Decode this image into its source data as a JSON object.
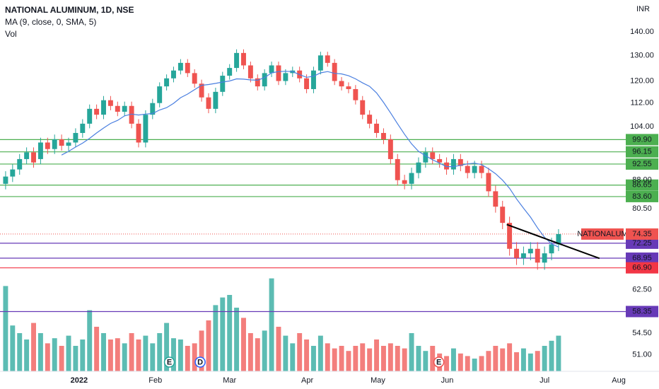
{
  "chart_data": {
    "type": "candlestick",
    "title": "NATIONAL ALUMINUM, 1D, NSE",
    "indicator_label": "MA (9, close, 0, SMA, 5)",
    "volume_label": "Vol",
    "currency": "INR",
    "symbol": "NATIONALUM",
    "last_price": {
      "value": 74.35,
      "label": "74.35"
    },
    "log_scale": true,
    "up_color": "#26a69a",
    "down_color": "#ef5350",
    "ma_color": "#4a7fe0",
    "xlim": [
      -0.8,
      88.1
    ],
    "ylim": [
      48.4,
      154.6
    ],
    "volume_ylim": [
      0,
      100
    ],
    "xticks": [
      {
        "value": 10.5,
        "label": "2022"
      },
      {
        "value": 21.4,
        "label": "Feb"
      },
      {
        "value": 32,
        "label": "Mar"
      },
      {
        "value": 43.1,
        "label": "Apr"
      },
      {
        "value": 53.2,
        "label": "May"
      },
      {
        "value": 63.1,
        "label": "Jun"
      },
      {
        "value": 77,
        "label": "Jul"
      },
      {
        "value": 87.6,
        "label": "Aug"
      }
    ],
    "yticks": [
      {
        "value": 140,
        "label": "140.00"
      },
      {
        "value": 130,
        "label": "130.00"
      },
      {
        "value": 120,
        "label": "120.00"
      },
      {
        "value": 112,
        "label": "112.00"
      },
      {
        "value": 104,
        "label": "104.00"
      },
      {
        "value": 88,
        "label": "88.00"
      },
      {
        "value": 80.5,
        "label": "80.50"
      },
      {
        "value": 62.5,
        "label": "62.50"
      },
      {
        "value": 54.5,
        "label": "54.50"
      },
      {
        "value": 51,
        "label": "51.00"
      }
    ],
    "open": [
      87,
      89,
      91,
      94,
      96,
      94,
      99,
      97,
      100,
      98,
      99,
      102,
      105,
      110,
      108,
      113,
      111,
      109,
      111,
      105,
      99,
      108,
      112,
      118,
      121,
      124,
      127,
      123,
      119,
      114,
      110,
      116,
      122,
      125,
      131,
      126,
      121,
      118,
      123,
      126,
      120,
      123,
      124,
      121,
      117,
      124,
      130,
      127,
      120,
      118,
      117,
      113,
      108,
      105,
      102,
      100,
      94,
      88,
      87,
      90,
      93,
      96,
      94,
      93,
      91,
      94,
      92,
      90,
      92,
      90,
      85,
      81,
      77,
      71,
      69,
      70,
      71,
      68,
      70,
      72
    ],
    "high": [
      90.5,
      92.5,
      95.5,
      97.5,
      97.5,
      100.5,
      100.5,
      101.5,
      101.5,
      100.5,
      103.5,
      106.5,
      111.5,
      111.5,
      114.5,
      114.5,
      112.5,
      112.5,
      112.5,
      106.5,
      109.5,
      113.5,
      119.5,
      122.5,
      125.5,
      128.5,
      128.5,
      124.5,
      120.5,
      115.5,
      117.5,
      123.5,
      126.5,
      132.5,
      132.5,
      127.5,
      122.5,
      124.5,
      127.5,
      127.5,
      124.5,
      125.5,
      125.5,
      122.5,
      125.5,
      131.5,
      131.5,
      128.5,
      121.5,
      119.5,
      118.5,
      114.5,
      109.5,
      106.5,
      103.5,
      101.5,
      95.5,
      89.5,
      91.5,
      94.5,
      97.5,
      97.5,
      95.5,
      94.5,
      95.5,
      95.5,
      93.5,
      93.5,
      93.5,
      91.5,
      86.5,
      82.5,
      78.5,
      72.5,
      71.5,
      72.5,
      72.5,
      71.5,
      73.5,
      75.5
    ],
    "low": [
      85.5,
      87.5,
      89.5,
      92.5,
      91.5,
      92.5,
      95.5,
      95.5,
      96.5,
      96.5,
      97.5,
      100.5,
      103.5,
      106.5,
      106.5,
      109.5,
      107.5,
      107.5,
      103.5,
      97.5,
      97.5,
      106.5,
      110.5,
      116.5,
      119.5,
      122.5,
      121.5,
      117.5,
      112.5,
      108.5,
      108.5,
      114.5,
      120.5,
      123.5,
      124.5,
      119.5,
      116.5,
      116.5,
      121.5,
      118.5,
      118.5,
      121.5,
      119.5,
      115.5,
      115.5,
      122.5,
      125.5,
      118.5,
      116.5,
      115.5,
      111.5,
      106.5,
      103.5,
      100.5,
      98.5,
      92.5,
      86.5,
      85.5,
      85.5,
      88.5,
      91.5,
      92.5,
      91.5,
      89.5,
      89.5,
      90.5,
      88.5,
      88.5,
      88.5,
      83.5,
      79.5,
      75.5,
      69.5,
      67.5,
      67.5,
      68.5,
      66.5,
      66.5,
      68.5,
      70.5
    ],
    "close": [
      89,
      91,
      94,
      96,
      93,
      99,
      97,
      100,
      98,
      99,
      102,
      105,
      110,
      108,
      113,
      111,
      109,
      111,
      105,
      99,
      108,
      112,
      118,
      121,
      124,
      127,
      123,
      119,
      114,
      110,
      116,
      122,
      125,
      131,
      126,
      121,
      118,
      123,
      126,
      120,
      123,
      124,
      121,
      117,
      124,
      130,
      127,
      120,
      118,
      117,
      113,
      108,
      105,
      102,
      100,
      94,
      88,
      87,
      90,
      93,
      96,
      94,
      93,
      91,
      94,
      92,
      90,
      92,
      90,
      85,
      81,
      77,
      71,
      69,
      70,
      71,
      68,
      70,
      72,
      74.35
    ],
    "ma": [
      null,
      null,
      null,
      null,
      null,
      null,
      null,
      null,
      95.2,
      96.3,
      97.6,
      98.8,
      100.3,
      102,
      103.6,
      105.1,
      106.1,
      107.6,
      108.2,
      107.9,
      108.2,
      108.4,
      109.6,
      110.4,
      111.9,
      113.9,
      115.2,
      116.8,
      118.4,
      118.7,
      119.1,
      119.6,
      120,
      120.8,
      120.7,
      120.4,
      120.3,
      121.3,
      123.1,
      123.6,
      123.7,
      123.6,
      122.4,
      121.4,
      121.8,
      123.1,
      123.6,
      122.9,
      122.7,
      122,
      120.8,
      119.3,
      118,
      115.6,
      112.2,
      108.6,
      105,
      101.6,
      98.6,
      96.3,
      95,
      93.8,
      92.8,
      91.8,
      91.8,
      92.2,
      92.6,
      92.8,
      92.4,
      91.2,
      89.8,
      88,
      85.8,
      83,
      80.6,
      78.4,
      75.8,
      73.6,
      72.1,
      71.4
    ],
    "volume": [
      67,
      36,
      30,
      25,
      38,
      30,
      22,
      26,
      20,
      28,
      20,
      25,
      48,
      35,
      30,
      25,
      26,
      22,
      30,
      25,
      28,
      22,
      30,
      38,
      26,
      25,
      20,
      22,
      32,
      40,
      52,
      58,
      60,
      50,
      42,
      30,
      26,
      32,
      73,
      35,
      28,
      22,
      30,
      25,
      20,
      28,
      22,
      18,
      20,
      16,
      20,
      22,
      18,
      25,
      20,
      22,
      20,
      18,
      30,
      20,
      16,
      20,
      14,
      12,
      18,
      14,
      12,
      10,
      12,
      16,
      20,
      18,
      22,
      15,
      18,
      14,
      16,
      20,
      24,
      28
    ],
    "levels": [
      {
        "value": 99.9,
        "label": "99.90",
        "color": "#4caf50"
      },
      {
        "value": 96.15,
        "label": "96.15",
        "color": "#4caf50"
      },
      {
        "value": 92.55,
        "label": "92.55",
        "color": "#4caf50"
      },
      {
        "value": 86.65,
        "label": "86.65",
        "color": "#4caf50"
      },
      {
        "value": 83.6,
        "label": "83.60",
        "color": "#4caf50"
      },
      {
        "value": 72.25,
        "label": "72.25",
        "color": "#673ab7"
      },
      {
        "value": 68.95,
        "label": "68.95",
        "color": "#673ab7"
      },
      {
        "value": 66.9,
        "label": "66.90",
        "color": "#f23645"
      },
      {
        "value": 58.35,
        "label": "58.35",
        "color": "#673ab7"
      }
    ],
    "trendline": {
      "x": [
        71.6,
        84.85
      ],
      "y": [
        76.6,
        68.9
      ],
      "color": "#000000"
    },
    "events": [
      {
        "x": 23.4,
        "label": "E"
      },
      {
        "x": 27.8,
        "label": "D"
      },
      {
        "x": 61.9,
        "label": "E"
      }
    ]
  }
}
